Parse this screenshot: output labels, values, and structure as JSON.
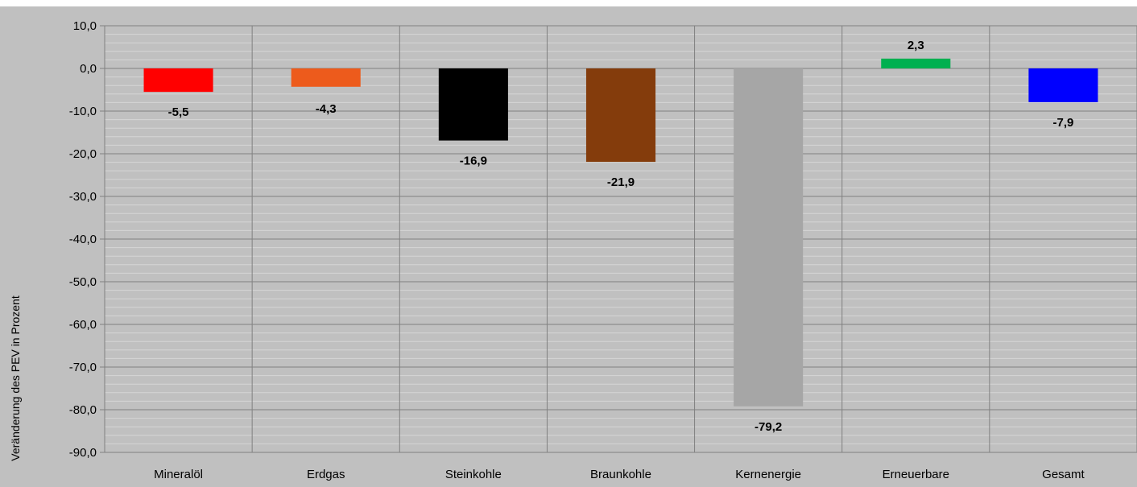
{
  "chart_data": {
    "type": "bar",
    "categories": [
      "Mineralöl",
      "Erdgas",
      "Steinkohle",
      "Braunkohle",
      "Kernenergie",
      "Erneuerbare",
      "Gesamt"
    ],
    "values": [
      -5.5,
      -4.3,
      -16.9,
      -21.9,
      -79.2,
      2.3,
      -7.9
    ],
    "value_labels": [
      "-5,5",
      "-4,3",
      "-16,9",
      "-21,9",
      "-79,2",
      "2,3",
      "-7,9"
    ],
    "colors": [
      "#ff0000",
      "#ed5b1c",
      "#000000",
      "#843c0c",
      "#a6a6a6",
      "#00b050",
      "#0000ff"
    ],
    "ylabel": "Veränderung des PEV in Prozent",
    "ylim": [
      -90,
      10
    ],
    "yticks": [
      10,
      0,
      -10,
      -20,
      -30,
      -40,
      -50,
      -60,
      -70,
      -80,
      -90
    ],
    "ytick_labels": [
      "10,0",
      "0,0",
      "-10,0",
      "-20,0",
      "-30,0",
      "-40,0",
      "-50,0",
      "-60,0",
      "-70,0",
      "-80,0",
      "-90,0"
    ],
    "minor_grid_step": 2,
    "grid": true,
    "plot_background": "#c0c0c0",
    "grid_color": "#d6d6d6",
    "separator_color": "#808080"
  }
}
